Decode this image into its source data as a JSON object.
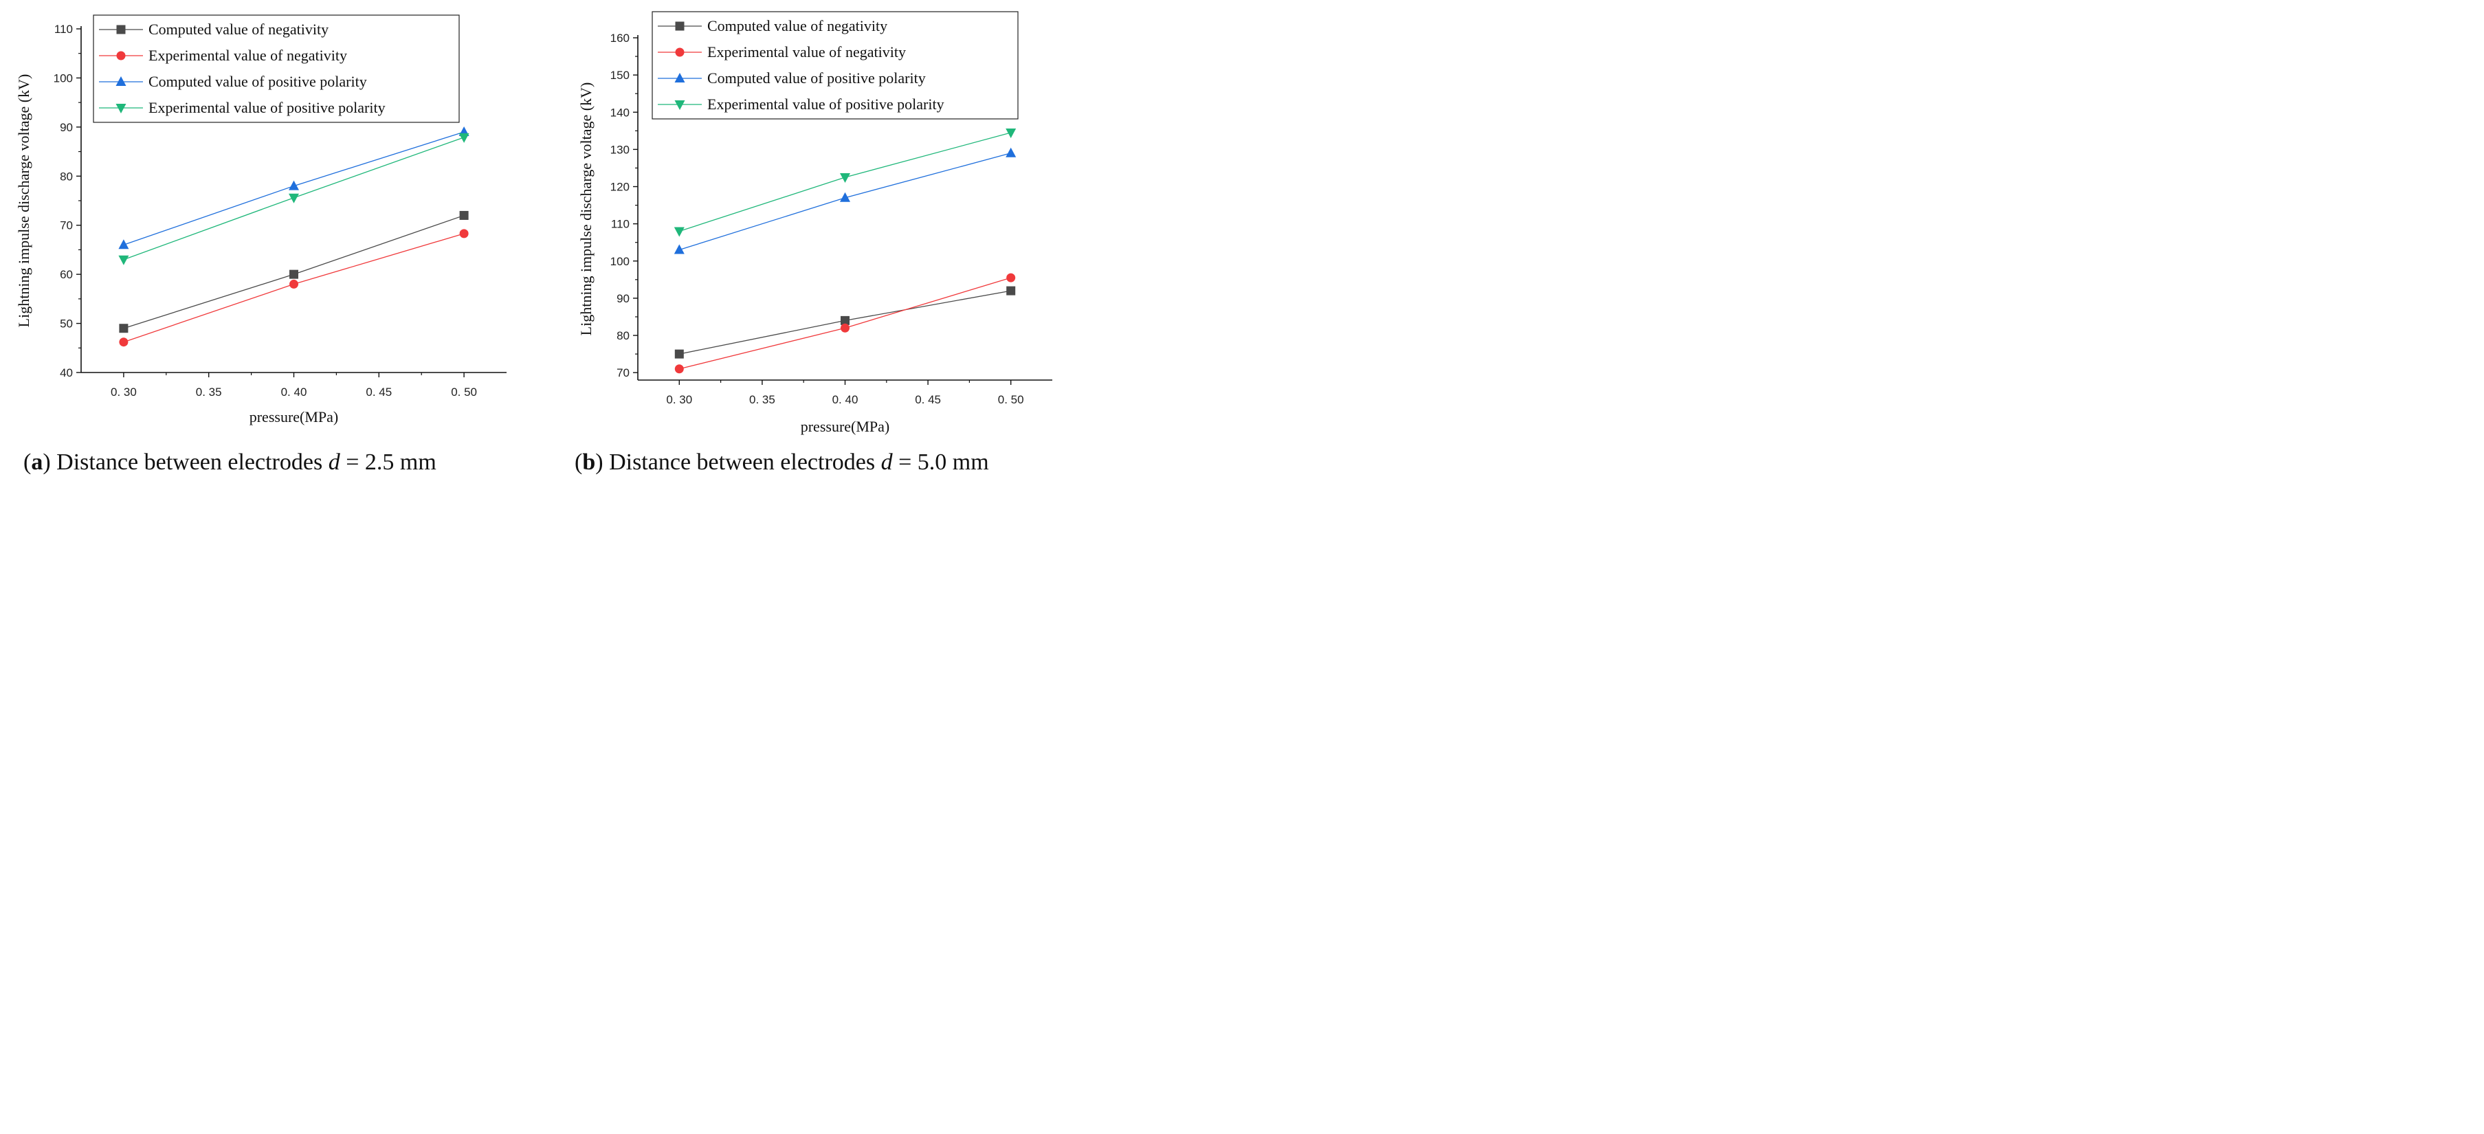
{
  "chart_data": [
    {
      "type": "line",
      "panel": "a",
      "xlabel": "pressure(MPa)",
      "ylabel": "Lightning impulse discharge voltage (kV)",
      "xlim": [
        0.275,
        0.525
      ],
      "ylim": [
        40,
        110
      ],
      "xticks": [
        0.3,
        0.35,
        0.4,
        0.45,
        0.5
      ],
      "xtick_labels": [
        "0. 30",
        "0. 35",
        "0. 40",
        "0. 45",
        "0. 50"
      ],
      "yticks": [
        40,
        50,
        60,
        70,
        80,
        90,
        100,
        110
      ],
      "ytick_labels": [
        "40",
        "50",
        "60",
        "70",
        "80",
        "90",
        "100",
        "110"
      ],
      "x": [
        0.3,
        0.4,
        0.5
      ],
      "legend_position": "top-right",
      "series": [
        {
          "name": "Computed value of negativity",
          "marker": "square",
          "color": "#4a4a4a",
          "values": [
            49,
            60,
            72
          ]
        },
        {
          "name": "Experimental value of negativity",
          "marker": "circle",
          "color": "#f0393b",
          "values": [
            46.2,
            58,
            68.3
          ]
        },
        {
          "name": "Computed value of positive polarity",
          "marker": "triangle-up",
          "color": "#1f6fdc",
          "values": [
            66,
            78,
            89
          ]
        },
        {
          "name": "Experimental value of positive polarity",
          "marker": "triangle-down",
          "color": "#1fb77a",
          "values": [
            63,
            75.6,
            87.9
          ]
        }
      ],
      "caption": {
        "label": "a",
        "text_before": "Distance between electrodes ",
        "var": "d",
        "text_after": " = 2.5 mm"
      }
    },
    {
      "type": "line",
      "panel": "b",
      "xlabel": "pressure(MPa)",
      "ylabel": "Lightning impulse discharge voltage (kV)",
      "xlim": [
        0.275,
        0.525
      ],
      "ylim": [
        68,
        160
      ],
      "xticks": [
        0.3,
        0.35,
        0.4,
        0.45,
        0.5
      ],
      "xtick_labels": [
        "0. 30",
        "0. 35",
        "0. 40",
        "0. 45",
        "0. 50"
      ],
      "yticks": [
        70,
        80,
        90,
        100,
        110,
        120,
        130,
        140,
        150,
        160
      ],
      "ytick_labels": [
        "70",
        "80",
        "90",
        "100",
        "110",
        "120",
        "130",
        "140",
        "150",
        "160"
      ],
      "x": [
        0.3,
        0.4,
        0.5
      ],
      "legend_position": "top-right",
      "series": [
        {
          "name": "Computed value of negativity",
          "marker": "square",
          "color": "#4a4a4a",
          "values": [
            75,
            84,
            92
          ]
        },
        {
          "name": "Experimental value of negativity",
          "marker": "circle",
          "color": "#f0393b",
          "values": [
            71,
            82,
            95.5
          ]
        },
        {
          "name": "Computed value of positive polarity",
          "marker": "triangle-up",
          "color": "#1f6fdc",
          "values": [
            103,
            117,
            129
          ]
        },
        {
          "name": "Experimental value of positive polarity",
          "marker": "triangle-down",
          "color": "#1fb77a",
          "values": [
            108,
            122.5,
            134.5
          ]
        }
      ],
      "caption": {
        "label": "b",
        "text_before": "Distance between electrodes ",
        "var": "d",
        "text_after": " = 5.0 mm"
      }
    }
  ]
}
